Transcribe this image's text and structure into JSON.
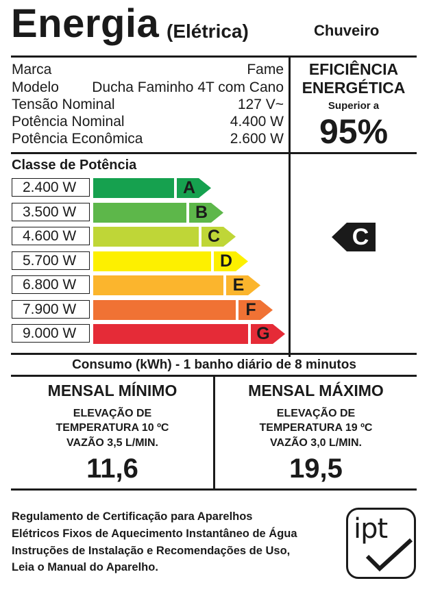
{
  "header": {
    "title": "Energia",
    "subtitle": "(Elétrica)",
    "product": "Chuveiro"
  },
  "specs": [
    {
      "label": "Marca",
      "value": "Fame"
    },
    {
      "label": "Modelo",
      "value": "Ducha Faminho 4T com Cano"
    },
    {
      "label": "Tensão Nominal",
      "value": "127 V~"
    },
    {
      "label": "Potência Nominal",
      "value": "4.400 W"
    },
    {
      "label": "Potência Econômica",
      "value": "2.600 W"
    }
  ],
  "efficiency": {
    "line1": "EFICIÊNCIA",
    "line2": "ENERGÉTICA",
    "qualifier": "Superior a",
    "value": "95%"
  },
  "power_class": {
    "title": "Classe de Potência",
    "rows": [
      {
        "power": "2.400 W",
        "letter": "A",
        "color": "#16a14f"
      },
      {
        "power": "3.500 W",
        "letter": "B",
        "color": "#5db74a"
      },
      {
        "power": "4.600 W",
        "letter": "C",
        "color": "#bfd637"
      },
      {
        "power": "5.700 W",
        "letter": "D",
        "color": "#fdf000"
      },
      {
        "power": "6.800 W",
        "letter": "E",
        "color": "#fbb52d"
      },
      {
        "power": "7.900 W",
        "letter": "F",
        "color": "#f07234"
      },
      {
        "power": "9.000 W",
        "letter": "G",
        "color": "#e52b37"
      }
    ],
    "indicator": {
      "letter": "C",
      "color": "#1a1a1a"
    }
  },
  "consumption": {
    "title": "Consumo (kWh) - 1 banho diário de 8 minutos",
    "minimo": {
      "heading": "MENSAL MÍNIMO",
      "line1": "ELEVAÇÃO DE",
      "line2": "TEMPERATURA 10 ºC",
      "line3": "VAZÃO 3,5 L/MIN.",
      "value": "11,6"
    },
    "maximo": {
      "heading": "MENSAL MÁXIMO",
      "line1": "ELEVAÇÃO DE",
      "line2": "TEMPERATURA 19 ºC",
      "line3": "VAZÃO 3,0 L/MIN.",
      "value": "19,5"
    }
  },
  "footer": {
    "lines": [
      "Regulamento de Certificação para Aparelhos",
      "Elétricos Fixos de Aquecimento Instantâneo de Água",
      "Instruções de Instalação e Recomendações de Uso,",
      "Leia o Manual do Aparelho."
    ],
    "logo_text": "ipt"
  }
}
